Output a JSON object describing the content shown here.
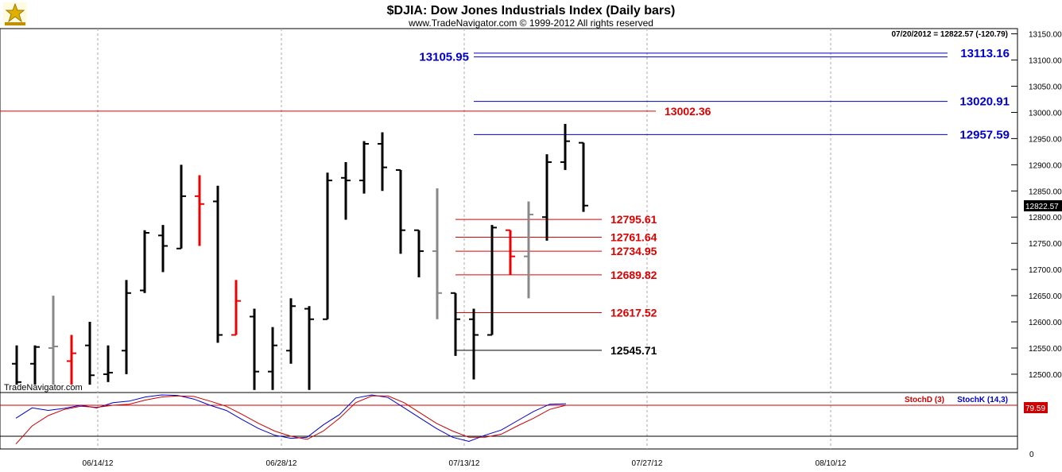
{
  "chart_data": {
    "type": "ohlc",
    "title": "$DJIA:  Dow Jones Industrials Index  (Daily bars)",
    "subtitle": "www.TradeNavigator.com © 1999-2012 All rights reserved",
    "status_line": "07/20/2012 = 12822.57 (-120.79)",
    "watermark": "TradeNavigator.com",
    "last_value_label": "12822.57",
    "price_axis": {
      "range": [
        12465,
        13160
      ],
      "ticks": [
        "13150.00",
        "13100.00",
        "13050.00",
        "13000.00",
        "12950.00",
        "12900.00",
        "12850.00",
        "12800.00",
        "12750.00",
        "12700.00",
        "12650.00",
        "12600.00",
        "12550.00",
        "12500.00"
      ]
    },
    "x_axis": {
      "ticks": [
        "06/14/12",
        "06/28/12",
        "07/13/12",
        "07/27/12",
        "08/10/12"
      ]
    },
    "bars": [
      {
        "o": 12520,
        "h": 12555,
        "l": 12480,
        "c": 12485,
        "color": "black"
      },
      {
        "o": 12520,
        "h": 12555,
        "l": 12480,
        "c": 12552,
        "color": "black"
      },
      {
        "o": 12550,
        "h": 12650,
        "l": 12480,
        "c": 12553,
        "color": "gray"
      },
      {
        "o": 12525,
        "h": 12575,
        "l": 12480,
        "c": 12540,
        "color": "red"
      },
      {
        "o": 12555,
        "h": 12600,
        "l": 12480,
        "c": 12498,
        "color": "black"
      },
      {
        "o": 12500,
        "h": 12555,
        "l": 12485,
        "c": 12503,
        "color": "black"
      },
      {
        "o": 12545,
        "h": 12680,
        "l": 12500,
        "c": 12655,
        "color": "black"
      },
      {
        "o": 12660,
        "h": 12775,
        "l": 12655,
        "c": 12770,
        "color": "black"
      },
      {
        "o": 12765,
        "h": 12785,
        "l": 12695,
        "c": 12745,
        "color": "black"
      },
      {
        "o": 12740,
        "h": 12900,
        "l": 12740,
        "c": 12840,
        "color": "black"
      },
      {
        "o": 12840,
        "h": 12880,
        "l": 12745,
        "c": 12825,
        "color": "red"
      },
      {
        "o": 12830,
        "h": 12860,
        "l": 12560,
        "c": 12575,
        "color": "black"
      },
      {
        "o": 12575,
        "h": 12680,
        "l": 12575,
        "c": 12640,
        "color": "red"
      },
      {
        "o": 12610,
        "h": 12625,
        "l": 12470,
        "c": 12505,
        "color": "black"
      },
      {
        "o": 12505,
        "h": 12590,
        "l": 12470,
        "c": 12555,
        "color": "black"
      },
      {
        "o": 12545,
        "h": 12645,
        "l": 12520,
        "c": 12630,
        "color": "black"
      },
      {
        "o": 12625,
        "h": 12630,
        "l": 12470,
        "c": 12605,
        "color": "black"
      },
      {
        "o": 12605,
        "h": 12885,
        "l": 12605,
        "c": 12870,
        "color": "black"
      },
      {
        "o": 12875,
        "h": 12905,
        "l": 12795,
        "c": 12870,
        "color": "black"
      },
      {
        "o": 12870,
        "h": 12945,
        "l": 12845,
        "c": 12940,
        "color": "black"
      },
      {
        "o": 12940,
        "h": 12962,
        "l": 12850,
        "c": 12895,
        "color": "black"
      },
      {
        "o": 12890,
        "h": 12890,
        "l": 12730,
        "c": 12775,
        "color": "black"
      },
      {
        "o": 12775,
        "h": 12775,
        "l": 12685,
        "c": 12735,
        "color": "black"
      },
      {
        "o": 12735,
        "h": 12855,
        "l": 12605,
        "c": 12655,
        "color": "gray"
      },
      {
        "o": 12655,
        "h": 12655,
        "l": 12535,
        "c": 12605,
        "color": "black"
      },
      {
        "o": 12605,
        "h": 12625,
        "l": 12490,
        "c": 12575,
        "color": "black"
      },
      {
        "o": 12575,
        "h": 12785,
        "l": 12575,
        "c": 12780,
        "color": "black"
      },
      {
        "o": 12775,
        "h": 12775,
        "l": 12690,
        "c": 12725,
        "color": "red"
      },
      {
        "o": 12725,
        "h": 12830,
        "l": 12645,
        "c": 12805,
        "color": "gray"
      },
      {
        "o": 12800,
        "h": 12920,
        "l": 12755,
        "c": 12905,
        "color": "black"
      },
      {
        "o": 12905,
        "h": 12978,
        "l": 12890,
        "c": 12945,
        "color": "black"
      },
      {
        "o": 12942,
        "h": 12942,
        "l": 12810,
        "c": 12822,
        "color": "black"
      }
    ],
    "levels": [
      {
        "value": "13113.16",
        "side": "right",
        "color": "blue"
      },
      {
        "value": "13105.95",
        "side": "left",
        "color": "blue"
      },
      {
        "value": "13020.91",
        "side": "right",
        "color": "blue"
      },
      {
        "value": "13002.36",
        "side": "mid",
        "color": "red"
      },
      {
        "value": "12957.59",
        "side": "right",
        "color": "blue"
      },
      {
        "value": "12795.61",
        "side": "mid",
        "color": "red"
      },
      {
        "value": "12761.64",
        "side": "mid",
        "color": "red"
      },
      {
        "value": "12734.95",
        "side": "mid",
        "color": "red"
      },
      {
        "value": "12689.82",
        "side": "mid",
        "color": "red"
      },
      {
        "value": "12617.52",
        "side": "mid",
        "color": "red"
      },
      {
        "value": "12545.71",
        "side": "mid",
        "color": "black"
      }
    ],
    "stochastic": {
      "legend_d": "StochD (3)",
      "legend_k": "StochK (14,3)",
      "badge_value": "79.59",
      "zero_label": "0",
      "k_values": [
        55,
        75,
        70,
        74,
        80,
        75,
        85,
        88,
        96,
        100,
        99,
        92,
        80,
        70,
        52,
        35,
        22,
        16,
        18,
        42,
        62,
        94,
        100,
        95,
        75,
        55,
        35,
        18,
        10,
        22,
        32,
        50,
        68,
        82,
        83
      ],
      "d_values": [
        5,
        40,
        60,
        72,
        78,
        76,
        80,
        82,
        90,
        96,
        98,
        97,
        88,
        78,
        62,
        45,
        30,
        20,
        14,
        30,
        55,
        85,
        98,
        98,
        85,
        65,
        45,
        30,
        18,
        18,
        24,
        40,
        55,
        72,
        80
      ]
    }
  }
}
